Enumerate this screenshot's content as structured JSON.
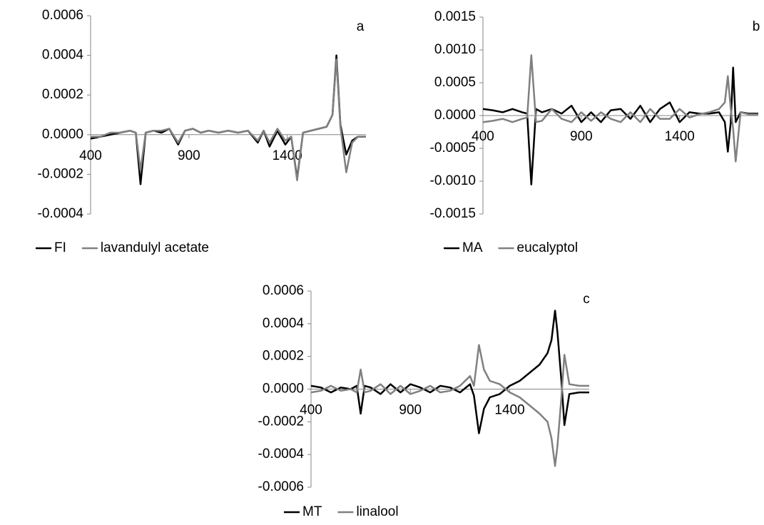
{
  "chart_data": [
    {
      "type": "line",
      "annotation": "a",
      "x": [
        400,
        450,
        500,
        550,
        600,
        630,
        654,
        680,
        720,
        760,
        800,
        845,
        880,
        920,
        960,
        1000,
        1050,
        1100,
        1150,
        1200,
        1250,
        1280,
        1310,
        1350,
        1390,
        1420,
        1450,
        1480,
        1520,
        1560,
        1600,
        1630,
        1650,
        1670,
        1700,
        1730,
        1760,
        1800
      ],
      "series": [
        {
          "name": "FI",
          "color": "#000000",
          "values": [
            -2e-05,
            -1e-05,
            0,
            1e-05,
            2e-05,
            1e-05,
            -0.00025,
            1e-05,
            2e-05,
            1e-05,
            3e-05,
            -5e-05,
            2e-05,
            3e-05,
            1e-05,
            2e-05,
            1e-05,
            2e-05,
            1e-05,
            2e-05,
            -4e-05,
            2e-05,
            -6e-05,
            2e-05,
            -5e-05,
            -1e-05,
            -0.00022,
            1e-05,
            2e-05,
            3e-05,
            4e-05,
            0.0001,
            0.0004,
            5e-05,
            -0.0001,
            -3e-05,
            -1e-05,
            -1e-05
          ]
        },
        {
          "name": "lavandulyl acetate",
          "color": "#808080",
          "values": [
            -1e-05,
            -1e-05,
            1e-05,
            1e-05,
            2e-05,
            1e-05,
            -0.00018,
            1e-05,
            2e-05,
            2e-05,
            3e-05,
            -4e-05,
            2e-05,
            3e-05,
            1e-05,
            2e-05,
            1e-05,
            2e-05,
            1e-05,
            2e-05,
            -3e-05,
            2e-05,
            -4e-05,
            3e-05,
            -3e-05,
            -1e-05,
            -0.00023,
            1e-05,
            2e-05,
            3e-05,
            4e-05,
            0.0001,
            0.00038,
            4e-05,
            -0.00019,
            -4e-05,
            -1e-05,
            -1e-05
          ]
        }
      ],
      "xlim": [
        400,
        1800
      ],
      "xticks": [
        400,
        900,
        1400
      ],
      "ylim": [
        -0.0004,
        0.0006
      ],
      "yticks": [
        -0.0004,
        -0.0002,
        {
          "value": 0,
          "label": "0.0000"
        },
        0.0002,
        0.0004,
        0.0006
      ]
    },
    {
      "type": "line",
      "annotation": "b",
      "x": [
        400,
        450,
        500,
        550,
        600,
        625,
        646,
        670,
        700,
        750,
        800,
        850,
        900,
        950,
        1000,
        1050,
        1100,
        1150,
        1200,
        1250,
        1300,
        1350,
        1400,
        1450,
        1500,
        1550,
        1600,
        1630,
        1645,
        1660,
        1672,
        1685,
        1710,
        1750,
        1800
      ],
      "series": [
        {
          "name": "MA",
          "color": "#000000",
          "values": [
            0.0001,
            8e-05,
            5e-05,
            0.0001,
            5e-05,
            3e-05,
            -0.00105,
            0.0001,
            5e-05,
            0.0001,
            3e-05,
            0.00015,
            -0.0001,
            5e-05,
            -0.0001,
            8e-05,
            0.0001,
            -5e-05,
            0.00015,
            -0.0001,
            0.0001,
            0.0002,
            -0.0001,
            5e-05,
            3e-05,
            3e-05,
            5e-05,
            -0.0001,
            -0.00055,
            -0.0001,
            0.00073,
            -0.0001,
            5e-05,
            3e-05,
            3e-05
          ]
        },
        {
          "name": "eucalyptol",
          "color": "#808080",
          "values": [
            -0.0001,
            -8e-05,
            -5e-05,
            -0.0001,
            -5e-05,
            -3e-05,
            0.00092,
            -0.0001,
            -8e-05,
            0.0001,
            -5e-05,
            -0.0001,
            5e-05,
            -8e-05,
            5e-05,
            -5e-05,
            -0.0001,
            5e-05,
            -0.0001,
            0.0001,
            -5e-05,
            -5e-05,
            0.0001,
            -3e-05,
            2e-05,
            5e-05,
            0.0001,
            0.0002,
            0.0006,
            0.0001,
            -0.0002,
            -0.0007,
            5e-05,
            2e-05,
            2e-05
          ]
        }
      ],
      "xlim": [
        400,
        1800
      ],
      "xticks": [
        400,
        900,
        1400
      ],
      "ylim": [
        -0.0015,
        0.0015
      ],
      "yticks": [
        -0.0015,
        {
          "value": -0.001,
          "label": "-0.0010"
        },
        -0.0005,
        {
          "value": 0,
          "label": "0.0000"
        },
        0.0005,
        {
          "value": 0.001,
          "label": "0.0010"
        },
        0.0015
      ]
    },
    {
      "type": "line",
      "annotation": "c",
      "x": [
        400,
        450,
        500,
        550,
        600,
        630,
        650,
        670,
        700,
        750,
        800,
        850,
        900,
        950,
        1000,
        1050,
        1100,
        1150,
        1200,
        1220,
        1245,
        1270,
        1300,
        1350,
        1400,
        1450,
        1500,
        1550,
        1590,
        1610,
        1628,
        1640,
        1660,
        1675,
        1700,
        1750,
        1800
      ],
      "series": [
        {
          "name": "MT",
          "color": "#000000",
          "values": [
            2e-05,
            1e-05,
            -2e-05,
            1e-05,
            0,
            2e-05,
            -0.00015,
            2e-05,
            1e-05,
            -3e-05,
            3e-05,
            -2e-05,
            3e-05,
            1e-05,
            -2e-05,
            2e-05,
            1e-05,
            -2e-05,
            3e-05,
            -4e-05,
            -0.00027,
            -0.00012,
            -5e-05,
            -3e-05,
            2e-05,
            5e-05,
            0.0001,
            0.00015,
            0.00022,
            0.0003,
            0.00048,
            0.00035,
            5e-05,
            -0.00022,
            -3e-05,
            -2e-05,
            -2e-05
          ]
        },
        {
          "name": "linalool",
          "color": "#808080",
          "values": [
            -2e-05,
            -1e-05,
            2e-05,
            -1e-05,
            0,
            -2e-05,
            0.00012,
            -2e-05,
            -1e-05,
            3e-05,
            -3e-05,
            2e-05,
            -3e-05,
            -1e-05,
            2e-05,
            -2e-05,
            -1e-05,
            2e-05,
            8e-05,
            2e-05,
            0.00027,
            0.00012,
            5e-05,
            3e-05,
            -2e-05,
            -5e-05,
            -0.0001,
            -0.00015,
            -0.0002,
            -0.0003,
            -0.00047,
            -0.00035,
            -5e-05,
            0.00021,
            3e-05,
            2e-05,
            2e-05
          ]
        }
      ],
      "xlim": [
        400,
        1800
      ],
      "xticks": [
        400,
        900,
        1400
      ],
      "ylim": [
        -0.0006,
        0.0006
      ],
      "yticks": [
        -0.0006,
        -0.0004,
        -0.0002,
        {
          "value": 0,
          "label": "0.0000"
        },
        0.0002,
        0.0004,
        0.0006
      ]
    }
  ]
}
